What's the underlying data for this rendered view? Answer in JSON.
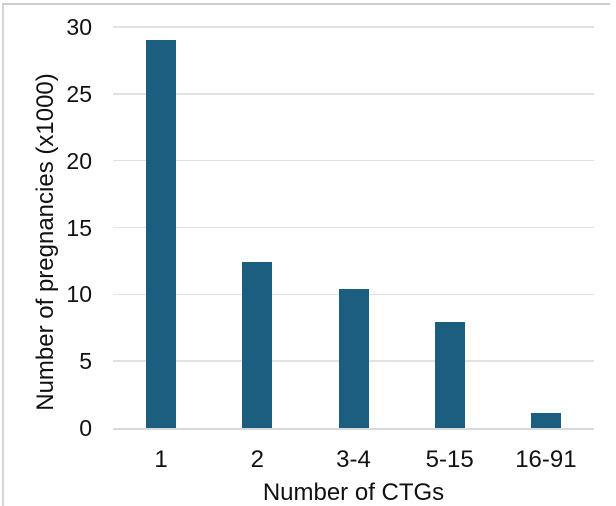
{
  "chart_data": {
    "type": "bar",
    "title": "",
    "xlabel": "Number of CTGs",
    "ylabel": "Number of pregnancies (x1000)",
    "categories": [
      "1",
      "2",
      "3-4",
      "5-15",
      "16-91"
    ],
    "values": [
      29,
      12.4,
      10.4,
      7.9,
      1.1
    ],
    "ylim": [
      0,
      30
    ],
    "yticks": [
      0,
      5,
      10,
      15,
      20,
      25,
      30
    ],
    "grid": "horizontal",
    "legend": "none",
    "colors": {
      "bar": "#1b5e7f",
      "gridline": "#e2e2e2",
      "axis_line": "#d9d9d9",
      "text": "#111111",
      "frame_border": "#cccccc",
      "background": "#ffffff"
    }
  }
}
